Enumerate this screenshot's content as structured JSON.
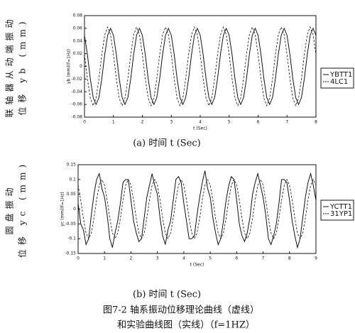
{
  "chart_data": [
    {
      "type": "line",
      "side_label": [
        "联轴器从动端振动",
        "位移 yb (mm)"
      ],
      "y_label": "yb (mm)(f=1Hz)",
      "x_label": "t (Sec)",
      "caption": "(a)   时间   t  (Sec)",
      "legend": "right",
      "grid": false,
      "xlim": [
        0,
        8
      ],
      "xticks": [
        0,
        1,
        2,
        3,
        4,
        5,
        6,
        7,
        8
      ],
      "ylim": [
        -0.08,
        0.08
      ],
      "yticks": [
        0.08,
        0.06,
        0.04,
        0.02,
        0,
        -0.02,
        -0.04,
        -0.06,
        -0.08
      ],
      "x": [
        0,
        0.1,
        0.2,
        0.3,
        0.4,
        0.5,
        0.6,
        0.7,
        0.8,
        0.9,
        1,
        1.1,
        1.2,
        1.3,
        1.4,
        1.5,
        1.6,
        1.7,
        1.8,
        1.9,
        2,
        2.1,
        2.2,
        2.3,
        2.4,
        2.5,
        2.6,
        2.7,
        2.8,
        2.9,
        3,
        3.1,
        3.2,
        3.3,
        3.4,
        3.5,
        3.6,
        3.7,
        3.8,
        3.9,
        4,
        4.1,
        4.2,
        4.3,
        4.4,
        4.5,
        4.6,
        4.7,
        4.8,
        4.9,
        5,
        5.1,
        5.2,
        5.3,
        5.4,
        5.5,
        5.6,
        5.7,
        5.8,
        5.9,
        6,
        6.1,
        6.2,
        6.3,
        6.4,
        6.5,
        6.6,
        6.7,
        6.8,
        6.9,
        7,
        7.1,
        7.2,
        7.3,
        7.4,
        7.5,
        7.6,
        7.7,
        7.8,
        7.9,
        8
      ],
      "series": [
        {
          "name": "YBTT1",
          "color": "#111111",
          "style": "solid",
          "values": [
            0.049,
            0.019,
            -0.019,
            -0.049,
            -0.06,
            -0.049,
            -0.019,
            0.019,
            0.049,
            0.06,
            0.049,
            0.019,
            -0.019,
            -0.049,
            -0.06,
            -0.049,
            -0.019,
            0.019,
            0.049,
            0.06,
            0.049,
            0.019,
            -0.019,
            -0.049,
            -0.06,
            -0.049,
            -0.019,
            0.019,
            0.049,
            0.06,
            0.049,
            0.019,
            -0.019,
            -0.049,
            -0.06,
            -0.049,
            -0.019,
            0.019,
            0.049,
            0.06,
            0.049,
            0.019,
            -0.019,
            -0.049,
            -0.06,
            -0.049,
            -0.019,
            0.019,
            0.049,
            0.06,
            0.049,
            0.019,
            -0.019,
            -0.049,
            -0.06,
            -0.049,
            -0.019,
            0.019,
            0.049,
            0.06,
            0.049,
            0.019,
            -0.019,
            -0.049,
            -0.06,
            -0.049,
            -0.019,
            0.019,
            0.049,
            0.06,
            0.049,
            0.019,
            -0.019,
            -0.049,
            -0.06,
            -0.049,
            -0.019,
            0.019,
            0.049,
            0.06,
            0.049
          ]
        },
        {
          "name": "4LC1",
          "color": "#111111",
          "style": "dashed",
          "values": [
            0.019,
            -0.019,
            -0.05,
            -0.062,
            -0.05,
            -0.019,
            0.019,
            0.05,
            0.062,
            0.05,
            0.019,
            -0.019,
            -0.05,
            -0.062,
            -0.05,
            -0.019,
            0.019,
            0.05,
            0.062,
            0.05,
            0.019,
            -0.019,
            -0.05,
            -0.062,
            -0.05,
            -0.019,
            0.019,
            0.05,
            0.062,
            0.05,
            0.019,
            -0.019,
            -0.05,
            -0.062,
            -0.05,
            -0.019,
            0.019,
            0.05,
            0.062,
            0.05,
            0.019,
            -0.019,
            -0.05,
            -0.062,
            -0.05,
            -0.019,
            0.019,
            0.05,
            0.062,
            0.05,
            0.019,
            -0.019,
            -0.05,
            -0.062,
            -0.05,
            -0.019,
            0.019,
            0.05,
            0.062,
            0.05,
            0.019,
            -0.019,
            -0.05,
            -0.062,
            -0.05,
            -0.019,
            0.019,
            0.05,
            0.062,
            0.05,
            0.019,
            -0.019,
            -0.05,
            -0.062,
            -0.05,
            -0.019,
            0.019,
            0.05,
            0.062,
            0.05,
            0.019
          ]
        }
      ]
    },
    {
      "type": "line",
      "side_label": [
        "圆盘振动",
        "位移 yc (mm)"
      ],
      "y_label": "yc (mm)(f=1Hz)",
      "x_label": "t (Sec)",
      "caption": "(b)   时间   t  (Sec)",
      "legend": "right",
      "grid": false,
      "xlim": [
        0,
        9
      ],
      "xticks": [
        0,
        1,
        2,
        3,
        4,
        5,
        6,
        7,
        8,
        9
      ],
      "ylim": [
        -0.15,
        0.15
      ],
      "yticks": [
        0.15,
        0.1,
        0.05,
        0,
        -0.05,
        -0.1,
        -0.15
      ],
      "x": [
        0,
        0.1,
        0.2,
        0.3,
        0.4,
        0.5,
        0.6,
        0.7,
        0.8,
        0.9,
        1,
        1.1,
        1.2,
        1.3,
        1.4,
        1.5,
        1.6,
        1.7,
        1.8,
        1.9,
        2,
        2.1,
        2.2,
        2.3,
        2.4,
        2.5,
        2.6,
        2.7,
        2.8,
        2.9,
        3,
        3.1,
        3.2,
        3.3,
        3.4,
        3.5,
        3.6,
        3.7,
        3.8,
        3.9,
        4,
        4.1,
        4.2,
        4.3,
        4.4,
        4.5,
        4.6,
        4.7,
        4.8,
        4.9,
        5,
        5.1,
        5.2,
        5.3,
        5.4,
        5.5,
        5.6,
        5.7,
        5.8,
        5.9,
        6,
        6.1,
        6.2,
        6.3,
        6.4,
        6.5,
        6.6,
        6.7,
        6.8,
        6.9,
        7,
        7.1,
        7.2,
        7.3,
        7.4,
        7.5,
        7.6,
        7.7,
        7.8,
        7.9,
        8,
        8.1,
        8.2,
        8.3,
        8.4,
        8.5,
        8.6,
        8.7,
        8.8,
        8.9,
        9
      ],
      "series": [
        {
          "name": "YCTT1",
          "color": "#111111",
          "style": "solid",
          "values": [
            0.02,
            -0.05,
            -0.07,
            -0.12,
            -0.1,
            -0.02,
            0.05,
            0.1,
            0.12,
            0.07,
            0.04,
            -0.02,
            -0.1,
            -0.13,
            -0.08,
            -0.04,
            0.02,
            0.09,
            0.1,
            0.1,
            0.03,
            -0.04,
            -0.08,
            -0.11,
            -0.1,
            -0.03,
            0.04,
            0.08,
            0.12,
            0.08,
            0.05,
            -0.03,
            -0.09,
            -0.12,
            -0.07,
            -0.04,
            0.03,
            0.1,
            0.11,
            0.09,
            0.02,
            -0.04,
            -0.1,
            -0.1,
            -0.09,
            -0.02,
            0.04,
            0.09,
            0.13,
            0.07,
            0.04,
            -0.03,
            -0.08,
            -0.12,
            -0.1,
            -0.04,
            0.03,
            0.08,
            0.11,
            0.1,
            0.03,
            -0.05,
            -0.09,
            -0.11,
            -0.08,
            -0.03,
            0.05,
            0.09,
            0.12,
            0.08,
            0.04,
            -0.02,
            -0.1,
            -0.12,
            -0.09,
            -0.05,
            0.02,
            0.1,
            0.1,
            0.09,
            0.03,
            -0.04,
            -0.09,
            -0.13,
            -0.1,
            -0.03,
            0.04,
            0.09,
            0.12,
            0.08,
            0.03
          ]
        },
        {
          "name": "31YP1",
          "color": "#111111",
          "style": "dashed",
          "values": [
            0.081,
            0.031,
            -0.031,
            -0.081,
            -0.1,
            -0.081,
            -0.031,
            0.031,
            0.081,
            0.1,
            0.081,
            0.031,
            -0.031,
            -0.081,
            -0.1,
            -0.081,
            -0.031,
            0.031,
            0.081,
            0.1,
            0.081,
            0.031,
            -0.031,
            -0.081,
            -0.1,
            -0.081,
            -0.031,
            0.031,
            0.081,
            0.1,
            0.081,
            0.031,
            -0.031,
            -0.081,
            -0.1,
            -0.081,
            -0.031,
            0.031,
            0.081,
            0.1,
            0.081,
            0.031,
            -0.031,
            -0.081,
            -0.1,
            -0.081,
            -0.031,
            0.031,
            0.081,
            0.1,
            0.081,
            0.031,
            -0.031,
            -0.081,
            -0.1,
            -0.081,
            -0.031,
            0.031,
            0.081,
            0.1,
            0.081,
            0.031,
            -0.031,
            -0.081,
            -0.1,
            -0.081,
            -0.031,
            0.031,
            0.081,
            0.1,
            0.081,
            0.031,
            -0.031,
            -0.081,
            -0.1,
            -0.081,
            -0.031,
            0.031,
            0.081,
            0.1,
            0.081,
            0.031,
            -0.031,
            -0.081,
            -0.1,
            -0.081,
            -0.031,
            0.031,
            0.081,
            0.1,
            0.081
          ]
        }
      ]
    }
  ],
  "figure_caption": [
    "图7-2   轴系振动位移理论曲线（虚线）",
    "和实验曲线图（实线）（f=1HZ）"
  ]
}
